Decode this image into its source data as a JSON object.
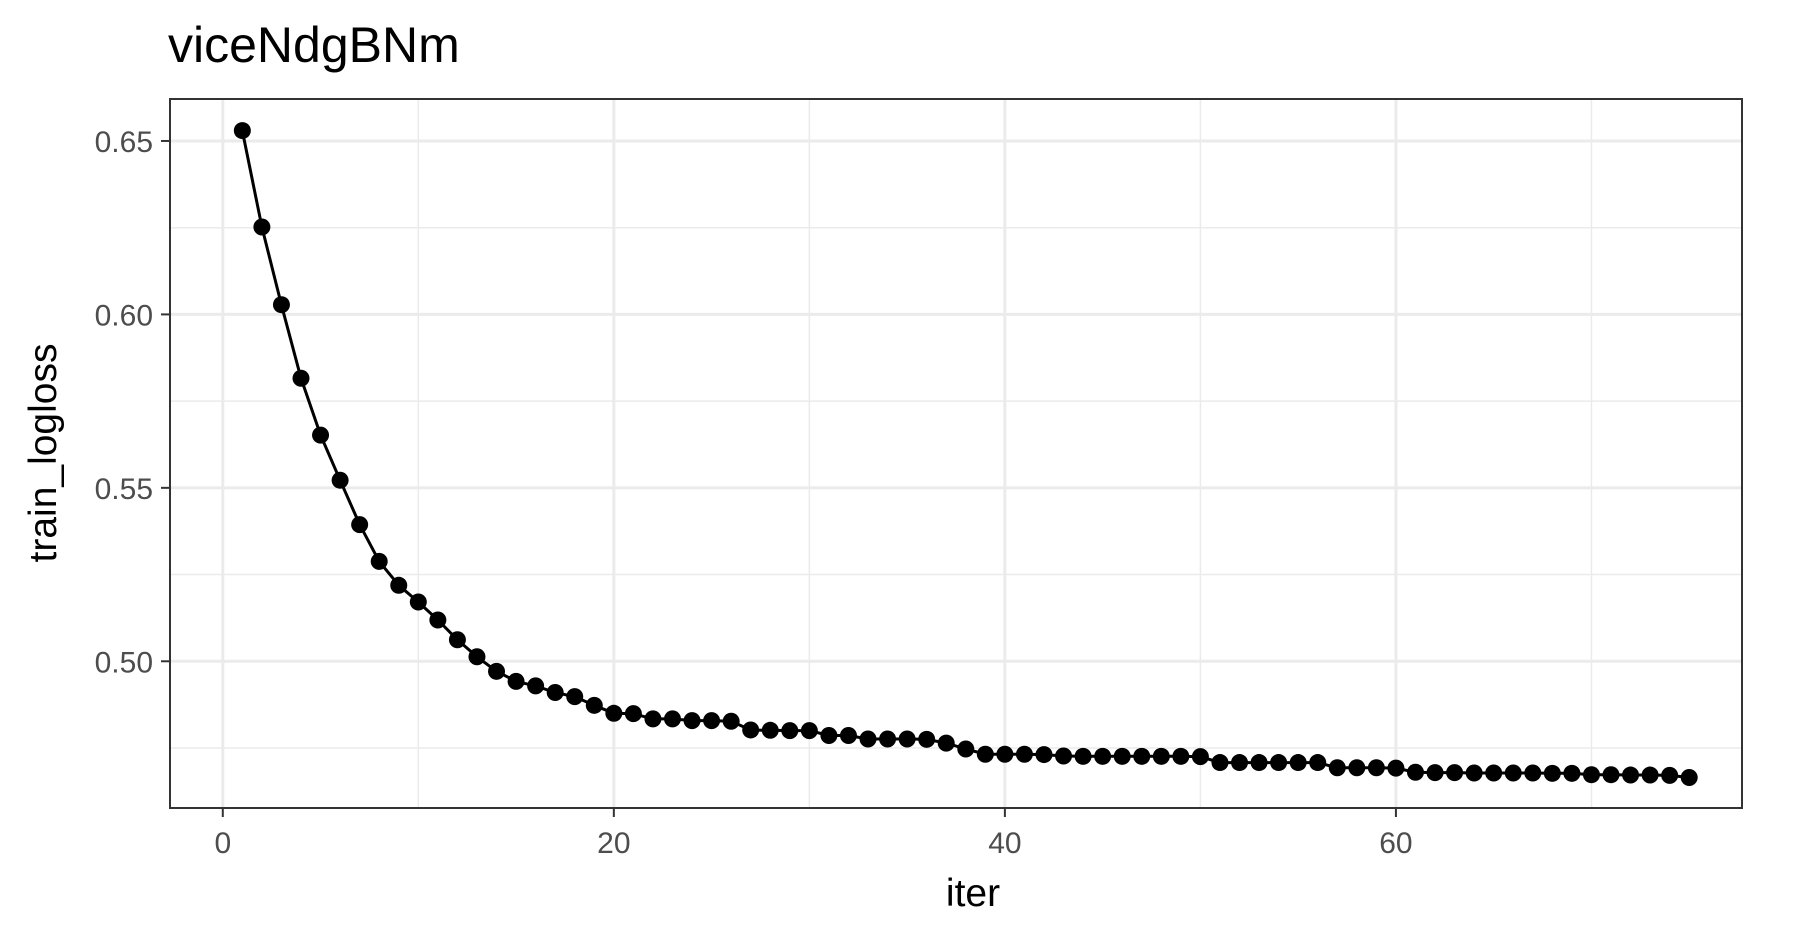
{
  "chart_data": {
    "type": "line",
    "title": "viceNdgBNm",
    "xlabel": "iter",
    "ylabel": "train_logloss",
    "xlim": [
      -2.7,
      77.7
    ],
    "ylim": [
      0.4577,
      0.6621
    ],
    "x_ticks": [
      0,
      20,
      40,
      60
    ],
    "x_tick_labels": [
      "0",
      "20",
      "40",
      "60"
    ],
    "y_ticks": [
      0.5,
      0.55,
      0.6,
      0.65
    ],
    "y_tick_labels": [
      "0.50",
      "0.55",
      "0.60",
      "0.65"
    ],
    "x_minor_ticks": [
      10,
      30,
      50,
      70
    ],
    "y_minor_ticks": [
      0.475,
      0.525,
      0.575,
      0.625
    ],
    "grid": true,
    "markers": true,
    "colors": {
      "line": "#000000",
      "grid": "#ebebeb",
      "panel_border": "#333333",
      "tick_label": "#4d4d4d"
    },
    "series": [
      {
        "x": [
          1,
          2,
          3,
          4,
          5,
          6,
          7,
          8,
          9,
          10,
          11,
          12,
          13,
          14,
          15,
          16,
          17,
          18,
          19,
          20,
          21,
          22,
          23,
          24,
          25,
          26,
          27,
          28,
          29,
          30,
          31,
          32,
          33,
          34,
          35,
          36,
          37,
          38,
          39,
          40,
          41,
          42,
          43,
          44,
          45,
          46,
          47,
          48,
          49,
          50,
          51,
          52,
          53,
          54,
          55,
          56,
          57,
          58,
          59,
          60,
          61,
          62,
          63,
          64,
          65,
          66,
          67,
          68,
          69,
          70,
          71,
          72,
          73,
          74,
          75
        ],
        "y": [
          0.653,
          0.6252,
          0.6028,
          0.5816,
          0.5652,
          0.5522,
          0.5394,
          0.5288,
          0.5219,
          0.5171,
          0.5119,
          0.5062,
          0.5013,
          0.4971,
          0.4942,
          0.4929,
          0.491,
          0.4898,
          0.4873,
          0.485,
          0.4849,
          0.4834,
          0.4834,
          0.4829,
          0.4829,
          0.4827,
          0.4802,
          0.4801,
          0.48,
          0.48,
          0.4786,
          0.4786,
          0.4776,
          0.4776,
          0.4776,
          0.4775,
          0.4764,
          0.4747,
          0.4732,
          0.4732,
          0.4732,
          0.4731,
          0.4727,
          0.4726,
          0.4726,
          0.4726,
          0.4726,
          0.4726,
          0.4726,
          0.4725,
          0.4708,
          0.4708,
          0.4708,
          0.4708,
          0.4708,
          0.4708,
          0.4693,
          0.4693,
          0.4693,
          0.4692,
          0.468,
          0.4679,
          0.4679,
          0.4678,
          0.4678,
          0.4678,
          0.4678,
          0.4677,
          0.4677,
          0.4673,
          0.4673,
          0.4672,
          0.4672,
          0.4671,
          0.4665
        ]
      }
    ]
  }
}
